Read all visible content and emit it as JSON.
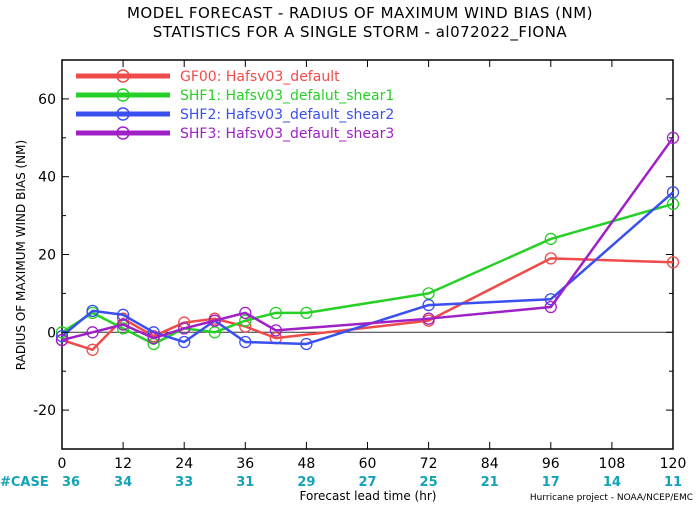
{
  "chart_data": {
    "type": "line",
    "title": "MODEL FORECAST - RADIUS OF MAXIMUM WIND BIAS (NM)",
    "subtitle": "STATISTICS FOR A SINGLE STORM - al072022_FIONA",
    "xlabel": "Forecast lead time (hr)",
    "ylabel": "RADIUS OF MAXIMUM WIND BIAS (NM)",
    "xlim": [
      0,
      120
    ],
    "ylim": [
      -30,
      70
    ],
    "xticks": [
      "0",
      "12",
      "24",
      "36",
      "48",
      "60",
      "72",
      "84",
      "96",
      "108",
      "120"
    ],
    "yticks": [
      "-20",
      "0",
      "20",
      "40",
      "60"
    ],
    "zero_line": true,
    "legend_position": "top-left",
    "case_label": "#CASE",
    "cases": [
      "36",
      "34",
      "33",
      "31",
      "29",
      "27",
      "25",
      "21",
      "17",
      "14",
      "11"
    ],
    "credit": "Hurricane project - NOAA/NCEP/EMC",
    "series": [
      {
        "name": "GF00: Hafsv03_default",
        "color": "#ef4b4b",
        "x": [
          0,
          6,
          12,
          18,
          24,
          30,
          36,
          42,
          72,
          96,
          120
        ],
        "y": [
          -2,
          -4.5,
          3.5,
          -1,
          2.5,
          3.5,
          1.5,
          -1.5,
          3,
          19,
          18
        ]
      },
      {
        "name": "SHF1: Hafsv03_defalut_shear1",
        "color": "#27d027",
        "x": [
          0,
          6,
          12,
          18,
          24,
          30,
          36,
          42,
          48,
          72,
          96,
          120
        ],
        "y": [
          0,
          5,
          1,
          -3,
          1,
          0,
          3,
          5,
          5,
          10,
          24,
          33
        ]
      },
      {
        "name": "SHF2: Hafsv03_default_shear2",
        "color": "#3a4ff0",
        "x": [
          0,
          6,
          12,
          18,
          24,
          30,
          36,
          48,
          72,
          96,
          120
        ],
        "y": [
          -1,
          5.5,
          4.5,
          0,
          -2.5,
          3,
          -2.5,
          -3,
          7,
          8.5,
          36
        ]
      },
      {
        "name": "SHF3: Hafsv03_default_shear3",
        "color": "#a020c8",
        "x": [
          0,
          6,
          12,
          18,
          24,
          30,
          36,
          42,
          72,
          96,
          120
        ],
        "y": [
          -2,
          0,
          2,
          -1.5,
          1,
          3,
          5,
          0.5,
          3.5,
          6.5,
          50
        ]
      }
    ]
  }
}
